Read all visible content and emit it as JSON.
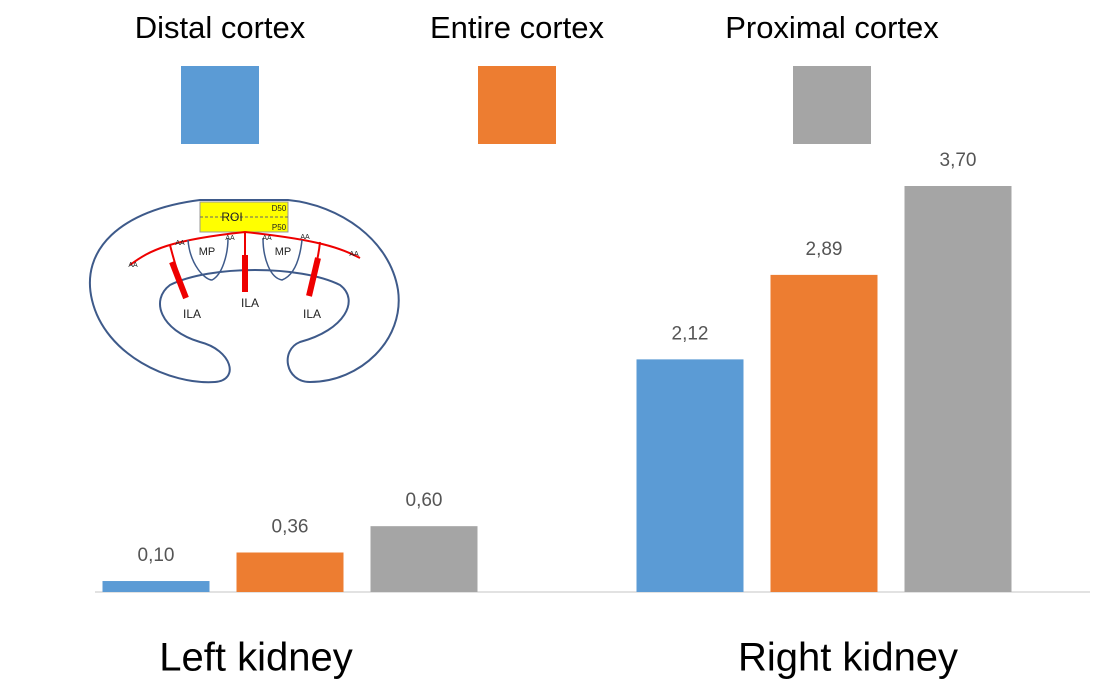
{
  "chart_data": {
    "type": "bar",
    "categories": [
      "Left kidney",
      "Right kidney"
    ],
    "series": [
      {
        "name": "Distal cortex",
        "color": "#5b9bd5",
        "values": [
          0.1,
          2.12
        ],
        "value_labels": [
          "0,10",
          "2,12"
        ]
      },
      {
        "name": "Entire cortex",
        "color": "#ed7d31",
        "values": [
          0.36,
          2.89
        ],
        "value_labels": [
          "0,36",
          "2,89"
        ]
      },
      {
        "name": "Proximal cortex",
        "color": "#a5a5a5",
        "values": [
          0.6,
          3.7
        ],
        "value_labels": [
          "0,60",
          "3,70"
        ]
      }
    ]
  },
  "diagram_labels": [
    "ROI",
    "D50",
    "P50",
    "AA",
    "AA",
    "AA",
    "AA",
    "AA",
    "AA",
    "MP",
    "MP",
    "ILA",
    "ILA",
    "ILA"
  ]
}
